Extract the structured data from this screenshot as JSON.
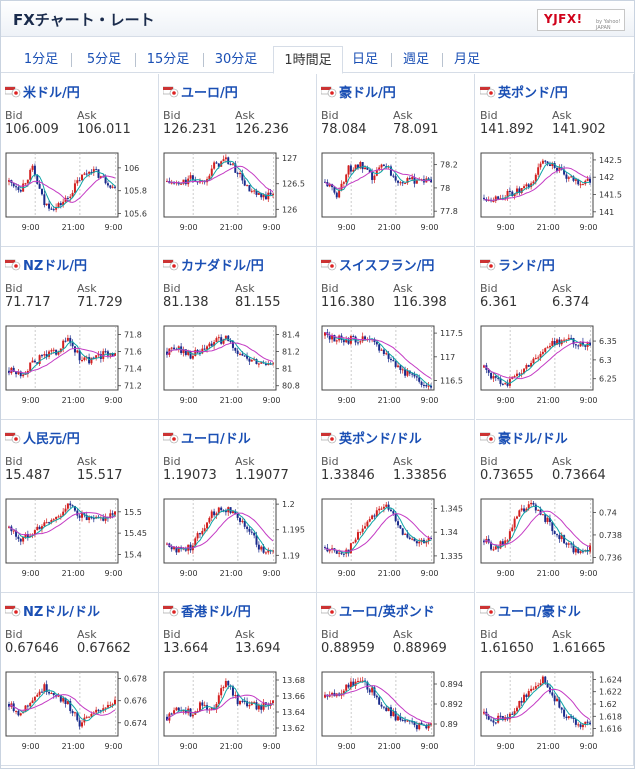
{
  "title": "FXチャート・レート",
  "logo": {
    "text": "YJFX!",
    "sub": "by Yahoo! JAPAN"
  },
  "tabs": [
    "1分足",
    "5分足",
    "15分足",
    "30分足",
    "1時間足",
    "日足",
    "週足",
    "月足"
  ],
  "active_tab": "1時間足",
  "labels": {
    "bid": "Bid",
    "ask": "Ask"
  },
  "colors": {
    "up": "#d21f1f",
    "down": "#1a2b8c",
    "ma_fast": "#0fa6a6",
    "ma_slow": "#c43bc4"
  },
  "pairs": [
    {
      "name": "米ドル/円",
      "flag": "flag-us-jp",
      "bid": "106.009",
      "ask": "106.011",
      "chart": {
        "ticks": [
          "106",
          "105.8",
          "105.6"
        ],
        "range": [
          105.57,
          106.13
        ],
        "shape": [
          0.55,
          0.45,
          0.75,
          0.2,
          0.15,
          0.3,
          0.6,
          0.75,
          0.6,
          0.45
        ]
      },
      "xlabels": [
        "9:00",
        "21:00",
        "9:00"
      ]
    },
    {
      "name": "ユーロ/円",
      "flag": "flag-eu-jp",
      "bid": "126.231",
      "ask": "126.236",
      "chart": {
        "ticks": [
          "127",
          "126.5",
          "126"
        ],
        "range": [
          125.85,
          127.1
        ],
        "shape": [
          0.55,
          0.5,
          0.6,
          0.55,
          0.8,
          0.9,
          0.7,
          0.4,
          0.3,
          0.35
        ]
      },
      "xlabels": [
        "9:00",
        "21:00",
        "9:00"
      ]
    },
    {
      "name": "豪ドル/円",
      "flag": "flag-au-jp",
      "bid": "78.084",
      "ask": "78.091",
      "chart": {
        "ticks": [
          "78.2",
          "78",
          "77.8"
        ],
        "range": [
          77.75,
          78.3
        ],
        "shape": [
          0.55,
          0.35,
          0.75,
          0.8,
          0.6,
          0.85,
          0.6,
          0.55,
          0.6,
          0.55
        ]
      },
      "xlabels": [
        "9:00",
        "21:00",
        "9:00"
      ]
    },
    {
      "name": "英ポンド/円",
      "flag": "flag-gb-jp",
      "bid": "141.892",
      "ask": "141.902",
      "chart": {
        "ticks": [
          "142.5",
          "142",
          "141.5",
          "141"
        ],
        "range": [
          140.85,
          142.7
        ],
        "shape": [
          0.3,
          0.3,
          0.35,
          0.4,
          0.5,
          0.9,
          0.8,
          0.6,
          0.55,
          0.55
        ]
      },
      "xlabels": [
        "9:00",
        "21:00",
        "9:00"
      ]
    },
    {
      "name": "NZドル/円",
      "flag": "flag-nz-jp",
      "bid": "71.717",
      "ask": "71.729",
      "chart": {
        "ticks": [
          "71.8",
          "71.6",
          "71.4",
          "71.2"
        ],
        "range": [
          71.15,
          71.9
        ],
        "shape": [
          0.3,
          0.25,
          0.4,
          0.55,
          0.6,
          0.8,
          0.5,
          0.45,
          0.55,
          0.6
        ]
      },
      "xlabels": [
        "9:00",
        "21:00",
        "9:00"
      ]
    },
    {
      "name": "カナダドル/円",
      "flag": "flag-ca-jp",
      "bid": "81.138",
      "ask": "81.155",
      "chart": {
        "ticks": [
          "81.4",
          "81.2",
          "81",
          "80.8"
        ],
        "range": [
          80.75,
          81.5
        ],
        "shape": [
          0.6,
          0.65,
          0.55,
          0.6,
          0.75,
          0.8,
          0.6,
          0.45,
          0.4,
          0.45
        ]
      },
      "xlabels": [
        "9:00",
        "21:00",
        "9:00"
      ]
    },
    {
      "name": "スイスフラン/円",
      "flag": "flag-ch-jp",
      "bid": "116.380",
      "ask": "116.398",
      "chart": {
        "ticks": [
          "117.5",
          "117",
          "116.5"
        ],
        "range": [
          116.3,
          117.65
        ],
        "shape": [
          0.85,
          0.8,
          0.78,
          0.8,
          0.75,
          0.6,
          0.4,
          0.25,
          0.12,
          0.08
        ]
      },
      "xlabels": [
        "9:00",
        "21:00",
        "9:00"
      ]
    },
    {
      "name": "ランド/円",
      "flag": "flag-za-jp",
      "bid": "6.361",
      "ask": "6.374",
      "chart": {
        "ticks": [
          "6.35",
          "6.3",
          "6.25"
        ],
        "range": [
          6.22,
          6.39
        ],
        "shape": [
          0.35,
          0.15,
          0.12,
          0.25,
          0.45,
          0.6,
          0.75,
          0.8,
          0.7,
          0.75
        ]
      },
      "xlabels": [
        "9:00",
        "21:00",
        "9:00"
      ]
    },
    {
      "name": "人民元/円",
      "flag": "flag-cn-jp",
      "bid": "15.487",
      "ask": "15.517",
      "chart": {
        "ticks": [
          "15.5",
          "15.45",
          "15.4"
        ],
        "range": [
          15.38,
          15.53
        ],
        "shape": [
          0.55,
          0.35,
          0.5,
          0.6,
          0.7,
          0.9,
          0.75,
          0.65,
          0.7,
          0.75
        ]
      },
      "xlabels": [
        "9:00",
        "21:00",
        "9:00"
      ]
    },
    {
      "name": "ユーロ/ドル",
      "flag": "flag-eu-us",
      "bid": "1.19073",
      "ask": "1.19077",
      "chart": {
        "ticks": [
          "1.2",
          "1.195",
          "1.19"
        ],
        "range": [
          1.1885,
          1.201
        ],
        "shape": [
          0.3,
          0.2,
          0.25,
          0.55,
          0.8,
          0.85,
          0.75,
          0.5,
          0.2,
          0.15
        ]
      },
      "xlabels": [
        "9:00",
        "21:00",
        "9:00"
      ]
    },
    {
      "name": "英ポンド/ドル",
      "flag": "flag-gb-us",
      "bid": "1.33846",
      "ask": "1.33856",
      "chart": {
        "ticks": [
          "1.345",
          "1.34",
          "1.335"
        ],
        "range": [
          1.3335,
          1.347
        ],
        "shape": [
          0.25,
          0.15,
          0.2,
          0.5,
          0.75,
          0.9,
          0.7,
          0.35,
          0.3,
          0.35
        ]
      },
      "xlabels": [
        "9:00",
        "21:00",
        "9:00"
      ]
    },
    {
      "name": "豪ドル/ドル",
      "flag": "flag-au-us",
      "bid": "0.73655",
      "ask": "0.73664",
      "chart": {
        "ticks": [
          "0.74",
          "0.738",
          "0.736"
        ],
        "range": [
          0.7355,
          0.7412
        ],
        "shape": [
          0.35,
          0.2,
          0.4,
          0.8,
          0.9,
          0.75,
          0.5,
          0.3,
          0.15,
          0.25
        ]
      },
      "xlabels": [
        "9:00",
        "21:00",
        "9:00"
      ]
    },
    {
      "name": "NZドル/ドル",
      "flag": "flag-nz-us",
      "bid": "0.67646",
      "ask": "0.67662",
      "chart": {
        "ticks": [
          "0.678",
          "0.676",
          "0.674"
        ],
        "range": [
          0.6728,
          0.6786
        ],
        "shape": [
          0.5,
          0.35,
          0.6,
          0.75,
          0.65,
          0.5,
          0.2,
          0.3,
          0.45,
          0.55
        ]
      },
      "xlabels": [
        "9:00",
        "21:00",
        "9:00"
      ]
    },
    {
      "name": "香港ドル/円",
      "flag": "flag-hk-jp",
      "bid": "13.664",
      "ask": "13.694",
      "chart": {
        "ticks": [
          "13.68",
          "13.66",
          "13.64",
          "13.62"
        ],
        "range": [
          13.61,
          13.69
        ],
        "shape": [
          0.3,
          0.45,
          0.35,
          0.5,
          0.4,
          0.9,
          0.55,
          0.5,
          0.45,
          0.55
        ]
      },
      "xlabels": [
        "9:00",
        "21:00",
        "9:00"
      ]
    },
    {
      "name": "ユーロ/英ポンド",
      "flag": "flag-eu-gb",
      "bid": "0.88959",
      "ask": "0.88969",
      "chart": {
        "ticks": [
          "0.894",
          "0.892",
          "0.89"
        ],
        "range": [
          0.8888,
          0.8952
        ],
        "shape": [
          0.6,
          0.65,
          0.8,
          0.85,
          0.7,
          0.45,
          0.3,
          0.2,
          0.15,
          0.2
        ]
      },
      "xlabels": [
        "9:00",
        "21:00",
        "9:00"
      ]
    },
    {
      "name": "ユーロ/豪ドル",
      "flag": "flag-eu-au",
      "bid": "1.61650",
      "ask": "1.61665",
      "chart": {
        "ticks": [
          "1.624",
          "1.622",
          "1.62",
          "1.618",
          "1.616"
        ],
        "range": [
          1.6148,
          1.6252
        ],
        "shape": [
          0.35,
          0.25,
          0.3,
          0.5,
          0.75,
          0.9,
          0.6,
          0.3,
          0.15,
          0.2
        ]
      },
      "xlabels": [
        "9:00",
        "21:00",
        "9:00"
      ]
    }
  ]
}
